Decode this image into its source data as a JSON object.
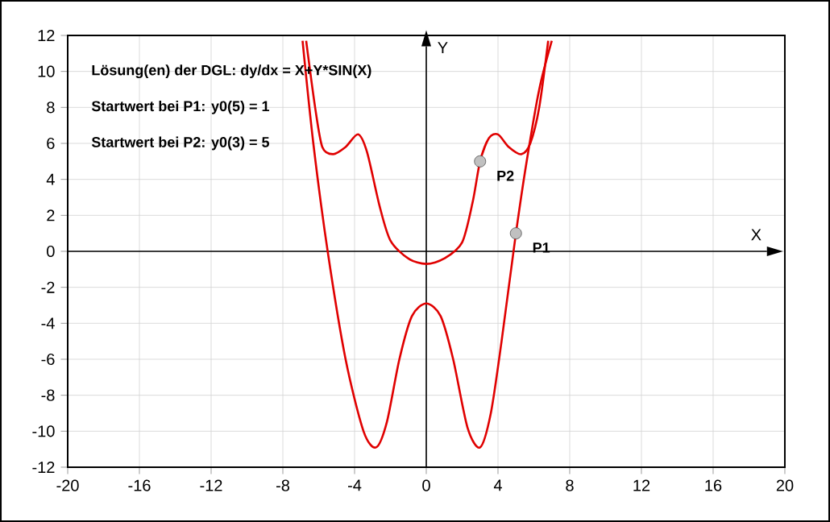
{
  "chart_data": {
    "type": "line",
    "xlabel": "X",
    "ylabel": "Y",
    "xlim": [
      -20,
      20
    ],
    "ylim": [
      -12,
      12
    ],
    "xticks": [
      -20,
      -16,
      -12,
      -8,
      -4,
      0,
      4,
      8,
      12,
      16,
      20
    ],
    "yticks": [
      -12,
      -10,
      -8,
      -6,
      -4,
      -2,
      0,
      2,
      4,
      6,
      8,
      10,
      12
    ],
    "grid": true,
    "marker": "none",
    "line_style": "solid",
    "series": [
      {
        "color": "#e00000",
        "x": [
          -6.7,
          -6.2,
          -5.8,
          -5.2,
          -4.5,
          -3.8,
          -3.3,
          -2.6,
          -2,
          -1,
          0,
          1,
          2,
          2.6,
          3,
          3.5,
          4,
          4.6,
          5.3,
          5.8,
          6.3,
          6.8
        ],
        "values": [
          11.7,
          8,
          5.8,
          5.4,
          5.8,
          6.5,
          5.5,
          2.5,
          0.6,
          -0.4,
          -0.7,
          -0.4,
          0.5,
          2.8,
          5,
          6.3,
          6.5,
          5.8,
          5.4,
          6,
          8,
          11.7
        ]
      },
      {
        "color": "#e00000",
        "x": [
          -6.9,
          -6.3,
          -5.5,
          -4.5,
          -3.5,
          -2.8,
          -2.2,
          -1.5,
          -0.8,
          0,
          0.8,
          1.5,
          2.3,
          3,
          3.6,
          4.2,
          5,
          5.6,
          6.3,
          7
        ],
        "values": [
          11.7,
          6,
          0,
          -6,
          -10,
          -10.9,
          -9.5,
          -6,
          -3.6,
          -2.9,
          -3.6,
          -6,
          -9.8,
          -10.9,
          -9,
          -5,
          1,
          5,
          9,
          11.7
        ]
      },
      {
        "type": "scatter",
        "marker": "circle",
        "color": "#c0c0c0",
        "x": [
          5,
          3
        ],
        "values": [
          1,
          5
        ]
      }
    ],
    "annotations": [
      "Lösung(en) der DGL: dy/dx = X+Y*SIN(X)",
      "Startwert bei P1: y0(5) = 1",
      "Startwert bei P2: y0(3) = 5",
      {
        "text": "P1",
        "x": 5,
        "y": 1
      },
      {
        "text": "P2",
        "x": 3,
        "y": 5
      }
    ]
  }
}
